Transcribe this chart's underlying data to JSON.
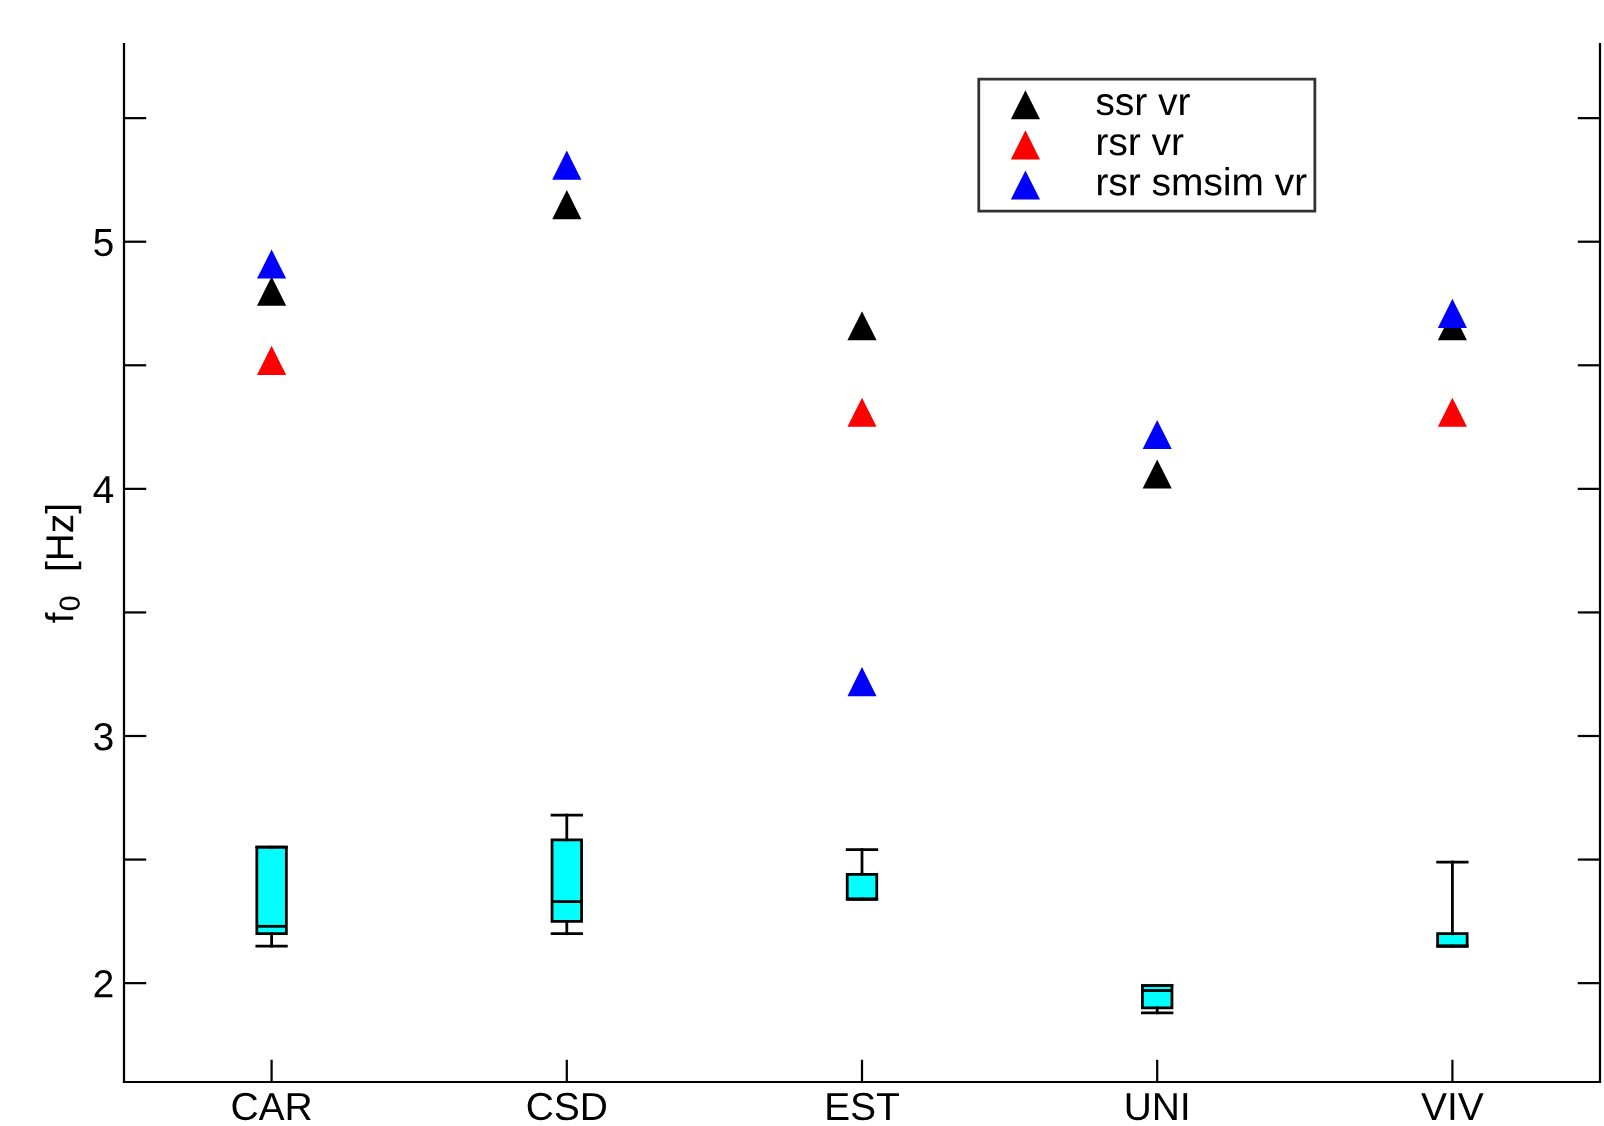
{
  "chart_data": {
    "type": "scatter",
    "ylabel": "f$_{0}$  [Hz]",
    "categories": [
      "CAR",
      "CSD",
      "EST",
      "UNI",
      "VIV"
    ],
    "series": [
      {
        "name": "ssr vr",
        "color": "#000000",
        "values": [
          4.8,
          5.15,
          4.66,
          4.06,
          4.66
        ]
      },
      {
        "name": "rsr vr",
        "color": "#ff0000",
        "values": [
          4.52,
          null,
          4.31,
          null,
          4.31
        ]
      },
      {
        "name": "rsr smsim vr",
        "color": "#0000ff",
        "values": [
          4.91,
          5.31,
          3.22,
          4.22,
          4.71
        ]
      },
      {
        "type": "box",
        "color": "#00ffff",
        "boxes": [
          {
            "low": 2.15,
            "q1": 2.2,
            "median": 2.23,
            "q3": 2.55,
            "high": 2.55
          },
          {
            "low": 2.2,
            "q1": 2.25,
            "median": 2.33,
            "q3": 2.58,
            "high": 2.68
          },
          {
            "low": 2.34,
            "q1": 2.34,
            "median": 2.34,
            "q3": 2.44,
            "high": 2.54
          },
          {
            "low": 1.88,
            "q1": 1.9,
            "median": 1.97,
            "q3": 1.99,
            "high": 1.99
          },
          {
            "low": 2.15,
            "q1": 2.15,
            "median": 2.15,
            "q3": 2.2,
            "high": 2.49
          }
        ]
      }
    ],
    "ylim": [
      1.6,
      5.8
    ],
    "yticks": [
      2,
      {
        "value": 2.5,
        "label": null
      },
      3,
      {
        "value": 3.5,
        "label": null
      },
      4,
      {
        "value": 4.5,
        "label": null
      },
      5,
      {
        "value": 5.5,
        "label": null
      }
    ],
    "marker": "triangle",
    "legend": "top right",
    "grid": false
  }
}
